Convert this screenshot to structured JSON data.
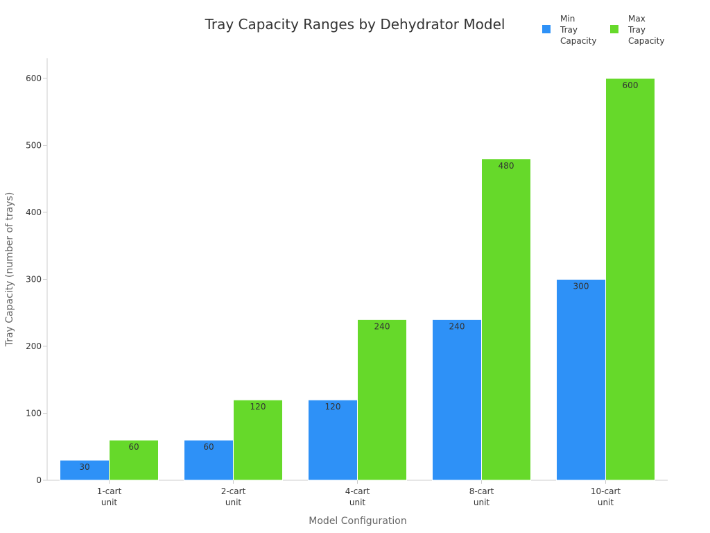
{
  "chart_data": {
    "type": "bar",
    "title": "Tray Capacity Ranges by Dehydrator Model",
    "xlabel": "Model Configuration",
    "ylabel": "Tray Capacity (number of trays)",
    "categories": [
      "1-cart unit",
      "2-cart unit",
      "4-cart unit",
      "8-cart unit",
      "10-cart unit"
    ],
    "series": [
      {
        "name": "Min Tray Capacity",
        "color": "#2e91f7",
        "values": [
          30,
          60,
          120,
          240,
          300
        ]
      },
      {
        "name": "Max Tray Capacity",
        "color": "#66d92a",
        "values": [
          60,
          120,
          240,
          480,
          600
        ]
      }
    ],
    "ylim": [
      0,
      630
    ],
    "yticks": [
      0,
      100,
      200,
      300,
      400,
      500,
      600
    ],
    "grid": false,
    "legend_position": "top-right"
  }
}
